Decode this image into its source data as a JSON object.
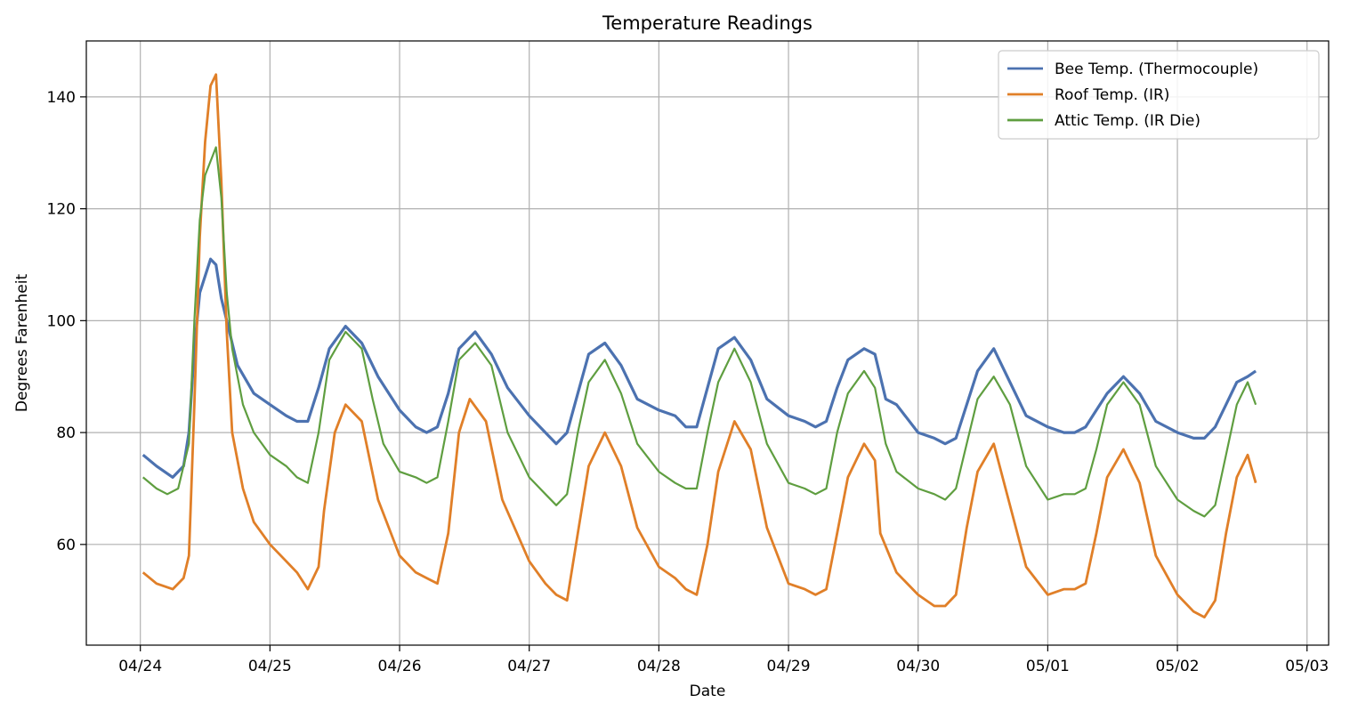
{
  "chart_data": {
    "type": "line",
    "title": "Temperature Readings",
    "xlabel": "Date",
    "ylabel": "Degrees Farenheit",
    "x_tick_labels": [
      "04/24",
      "04/25",
      "04/26",
      "04/27",
      "04/28",
      "04/29",
      "04/30",
      "05/01",
      "05/02",
      "05/03"
    ],
    "x_ticks": [
      "2019-04-24",
      "2019-04-25",
      "2019-04-26",
      "2019-04-27",
      "2019-04-28",
      "2019-04-29",
      "2019-04-30",
      "2019-05-01",
      "2019-05-02",
      "2019-05-03"
    ],
    "xlim": [
      "2019-04-23T14:00",
      "2019-05-03T04:00"
    ],
    "ylim": [
      42,
      150
    ],
    "y_ticks": [
      60,
      80,
      100,
      120,
      140
    ],
    "grid": true,
    "legend_position": "top-right",
    "series": [
      {
        "name": "Bee Temp. (Thermocouple)",
        "color": "#4c72b0",
        "points": [
          [
            "2019-04-24T00:30",
            76
          ],
          [
            "2019-04-24T03:00",
            74
          ],
          [
            "2019-04-24T06:00",
            72
          ],
          [
            "2019-04-24T08:00",
            74
          ],
          [
            "2019-04-24T09:00",
            80
          ],
          [
            "2019-04-24T10:00",
            95
          ],
          [
            "2019-04-24T11:00",
            105
          ],
          [
            "2019-04-24T13:00",
            111
          ],
          [
            "2019-04-24T14:00",
            110
          ],
          [
            "2019-04-24T15:00",
            104
          ],
          [
            "2019-04-24T16:00",
            100
          ],
          [
            "2019-04-24T18:00",
            92
          ],
          [
            "2019-04-24T21:00",
            87
          ],
          [
            "2019-04-25T00:00",
            85
          ],
          [
            "2019-04-25T03:00",
            83
          ],
          [
            "2019-04-25T05:00",
            82
          ],
          [
            "2019-04-25T07:00",
            82
          ],
          [
            "2019-04-25T09:00",
            88
          ],
          [
            "2019-04-25T11:00",
            95
          ],
          [
            "2019-04-25T14:00",
            99
          ],
          [
            "2019-04-25T17:00",
            96
          ],
          [
            "2019-04-25T20:00",
            90
          ],
          [
            "2019-04-26T00:00",
            84
          ],
          [
            "2019-04-26T03:00",
            81
          ],
          [
            "2019-04-26T05:00",
            80
          ],
          [
            "2019-04-26T07:00",
            81
          ],
          [
            "2019-04-26T09:00",
            87
          ],
          [
            "2019-04-26T11:00",
            95
          ],
          [
            "2019-04-26T14:00",
            98
          ],
          [
            "2019-04-26T17:00",
            94
          ],
          [
            "2019-04-26T20:00",
            88
          ],
          [
            "2019-04-27T00:00",
            83
          ],
          [
            "2019-04-27T03:00",
            80
          ],
          [
            "2019-04-27T05:00",
            78
          ],
          [
            "2019-04-27T07:00",
            80
          ],
          [
            "2019-04-27T09:00",
            87
          ],
          [
            "2019-04-27T11:00",
            94
          ],
          [
            "2019-04-27T14:00",
            96
          ],
          [
            "2019-04-27T17:00",
            92
          ],
          [
            "2019-04-27T20:00",
            86
          ],
          [
            "2019-04-28T00:00",
            84
          ],
          [
            "2019-04-28T03:00",
            83
          ],
          [
            "2019-04-28T05:00",
            81
          ],
          [
            "2019-04-28T07:00",
            81
          ],
          [
            "2019-04-28T09:00",
            88
          ],
          [
            "2019-04-28T11:00",
            95
          ],
          [
            "2019-04-28T14:00",
            97
          ],
          [
            "2019-04-28T17:00",
            93
          ],
          [
            "2019-04-28T20:00",
            86
          ],
          [
            "2019-04-29T00:00",
            83
          ],
          [
            "2019-04-29T03:00",
            82
          ],
          [
            "2019-04-29T05:00",
            81
          ],
          [
            "2019-04-29T07:00",
            82
          ],
          [
            "2019-04-29T09:00",
            88
          ],
          [
            "2019-04-29T11:00",
            93
          ],
          [
            "2019-04-29T14:00",
            95
          ],
          [
            "2019-04-29T16:00",
            94
          ],
          [
            "2019-04-29T18:00",
            86
          ],
          [
            "2019-04-29T20:00",
            85
          ],
          [
            "2019-04-30T00:00",
            80
          ],
          [
            "2019-04-30T03:00",
            79
          ],
          [
            "2019-04-30T05:00",
            78
          ],
          [
            "2019-04-30T07:00",
            79
          ],
          [
            "2019-04-30T09:00",
            85
          ],
          [
            "2019-04-30T11:00",
            91
          ],
          [
            "2019-04-30T14:00",
            95
          ],
          [
            "2019-04-30T17:00",
            89
          ],
          [
            "2019-04-30T20:00",
            83
          ],
          [
            "2019-05-01T00:00",
            81
          ],
          [
            "2019-05-01T03:00",
            80
          ],
          [
            "2019-05-01T05:00",
            80
          ],
          [
            "2019-05-01T07:00",
            81
          ],
          [
            "2019-05-01T09:00",
            84
          ],
          [
            "2019-05-01T11:00",
            87
          ],
          [
            "2019-05-01T14:00",
            90
          ],
          [
            "2019-05-01T17:00",
            87
          ],
          [
            "2019-05-01T20:00",
            82
          ],
          [
            "2019-05-02T00:00",
            80
          ],
          [
            "2019-05-02T03:00",
            79
          ],
          [
            "2019-05-02T05:00",
            79
          ],
          [
            "2019-05-02T07:00",
            81
          ],
          [
            "2019-05-02T09:00",
            85
          ],
          [
            "2019-05-02T11:00",
            89
          ],
          [
            "2019-05-02T13:00",
            90
          ],
          [
            "2019-05-02T14:30",
            91
          ]
        ]
      },
      {
        "name": "Roof Temp. (IR)",
        "color": "#e07f28",
        "points": [
          [
            "2019-04-24T00:30",
            55
          ],
          [
            "2019-04-24T03:00",
            53
          ],
          [
            "2019-04-24T06:00",
            52
          ],
          [
            "2019-04-24T08:00",
            54
          ],
          [
            "2019-04-24T09:00",
            58
          ],
          [
            "2019-04-24T10:00",
            85
          ],
          [
            "2019-04-24T11:00",
            115
          ],
          [
            "2019-04-24T12:00",
            132
          ],
          [
            "2019-04-24T13:00",
            142
          ],
          [
            "2019-04-24T14:00",
            144
          ],
          [
            "2019-04-24T15:00",
            125
          ],
          [
            "2019-04-24T16:00",
            98
          ],
          [
            "2019-04-24T17:00",
            80
          ],
          [
            "2019-04-24T19:00",
            70
          ],
          [
            "2019-04-24T21:00",
            64
          ],
          [
            "2019-04-25T00:00",
            60
          ],
          [
            "2019-04-25T03:00",
            57
          ],
          [
            "2019-04-25T05:00",
            55
          ],
          [
            "2019-04-25T07:00",
            52
          ],
          [
            "2019-04-25T09:00",
            56
          ],
          [
            "2019-04-25T10:00",
            66
          ],
          [
            "2019-04-25T12:00",
            80
          ],
          [
            "2019-04-25T14:00",
            85
          ],
          [
            "2019-04-25T17:00",
            82
          ],
          [
            "2019-04-25T20:00",
            68
          ],
          [
            "2019-04-26T00:00",
            58
          ],
          [
            "2019-04-26T03:00",
            55
          ],
          [
            "2019-04-26T05:00",
            54
          ],
          [
            "2019-04-26T07:00",
            53
          ],
          [
            "2019-04-26T09:00",
            62
          ],
          [
            "2019-04-26T11:00",
            80
          ],
          [
            "2019-04-26T13:00",
            86
          ],
          [
            "2019-04-26T16:00",
            82
          ],
          [
            "2019-04-26T19:00",
            68
          ],
          [
            "2019-04-27T00:00",
            57
          ],
          [
            "2019-04-27T03:00",
            53
          ],
          [
            "2019-04-27T05:00",
            51
          ],
          [
            "2019-04-27T07:00",
            50
          ],
          [
            "2019-04-27T09:00",
            62
          ],
          [
            "2019-04-27T11:00",
            74
          ],
          [
            "2019-04-27T14:00",
            80
          ],
          [
            "2019-04-27T17:00",
            74
          ],
          [
            "2019-04-27T20:00",
            63
          ],
          [
            "2019-04-28T00:00",
            56
          ],
          [
            "2019-04-28T03:00",
            54
          ],
          [
            "2019-04-28T05:00",
            52
          ],
          [
            "2019-04-28T07:00",
            51
          ],
          [
            "2019-04-28T09:00",
            60
          ],
          [
            "2019-04-28T11:00",
            73
          ],
          [
            "2019-04-28T14:00",
            82
          ],
          [
            "2019-04-28T17:00",
            77
          ],
          [
            "2019-04-28T20:00",
            63
          ],
          [
            "2019-04-29T00:00",
            53
          ],
          [
            "2019-04-29T03:00",
            52
          ],
          [
            "2019-04-29T05:00",
            51
          ],
          [
            "2019-04-29T07:00",
            52
          ],
          [
            "2019-04-29T09:00",
            62
          ],
          [
            "2019-04-29T11:00",
            72
          ],
          [
            "2019-04-29T14:00",
            78
          ],
          [
            "2019-04-29T16:00",
            75
          ],
          [
            "2019-04-29T17:00",
            62
          ],
          [
            "2019-04-29T20:00",
            55
          ],
          [
            "2019-04-30T00:00",
            51
          ],
          [
            "2019-04-30T03:00",
            49
          ],
          [
            "2019-04-30T05:00",
            49
          ],
          [
            "2019-04-30T07:00",
            51
          ],
          [
            "2019-04-30T09:00",
            63
          ],
          [
            "2019-04-30T11:00",
            73
          ],
          [
            "2019-04-30T14:00",
            78
          ],
          [
            "2019-04-30T17:00",
            67
          ],
          [
            "2019-04-30T20:00",
            56
          ],
          [
            "2019-05-01T00:00",
            51
          ],
          [
            "2019-05-01T03:00",
            52
          ],
          [
            "2019-05-01T05:00",
            52
          ],
          [
            "2019-05-01T07:00",
            53
          ],
          [
            "2019-05-01T09:00",
            62
          ],
          [
            "2019-05-01T11:00",
            72
          ],
          [
            "2019-05-01T14:00",
            77
          ],
          [
            "2019-05-01T17:00",
            71
          ],
          [
            "2019-05-01T20:00",
            58
          ],
          [
            "2019-05-02T00:00",
            51
          ],
          [
            "2019-05-02T03:00",
            48
          ],
          [
            "2019-05-02T05:00",
            47
          ],
          [
            "2019-05-02T07:00",
            50
          ],
          [
            "2019-05-02T09:00",
            62
          ],
          [
            "2019-05-02T11:00",
            72
          ],
          [
            "2019-05-02T13:00",
            76
          ],
          [
            "2019-05-02T14:30",
            71
          ]
        ]
      },
      {
        "name": "Attic Temp. (IR Die)",
        "color": "#5f9e40",
        "points": [
          [
            "2019-04-24T00:30",
            72
          ],
          [
            "2019-04-24T03:00",
            70
          ],
          [
            "2019-04-24T05:00",
            69
          ],
          [
            "2019-04-24T07:00",
            70
          ],
          [
            "2019-04-24T09:00",
            78
          ],
          [
            "2019-04-24T10:00",
            100
          ],
          [
            "2019-04-24T11:00",
            118
          ],
          [
            "2019-04-24T12:00",
            126
          ],
          [
            "2019-04-24T14:00",
            131
          ],
          [
            "2019-04-24T15:00",
            122
          ],
          [
            "2019-04-24T16:00",
            105
          ],
          [
            "2019-04-24T17:00",
            95
          ],
          [
            "2019-04-24T19:00",
            85
          ],
          [
            "2019-04-24T21:00",
            80
          ],
          [
            "2019-04-25T00:00",
            76
          ],
          [
            "2019-04-25T03:00",
            74
          ],
          [
            "2019-04-25T05:00",
            72
          ],
          [
            "2019-04-25T07:00",
            71
          ],
          [
            "2019-04-25T09:00",
            80
          ],
          [
            "2019-04-25T11:00",
            93
          ],
          [
            "2019-04-25T14:00",
            98
          ],
          [
            "2019-04-25T17:00",
            95
          ],
          [
            "2019-04-25T19:00",
            86
          ],
          [
            "2019-04-25T21:00",
            78
          ],
          [
            "2019-04-26T00:00",
            73
          ],
          [
            "2019-04-26T03:00",
            72
          ],
          [
            "2019-04-26T05:00",
            71
          ],
          [
            "2019-04-26T07:00",
            72
          ],
          [
            "2019-04-26T09:00",
            82
          ],
          [
            "2019-04-26T11:00",
            93
          ],
          [
            "2019-04-26T14:00",
            96
          ],
          [
            "2019-04-26T17:00",
            92
          ],
          [
            "2019-04-26T20:00",
            80
          ],
          [
            "2019-04-27T00:00",
            72
          ],
          [
            "2019-04-27T03:00",
            69
          ],
          [
            "2019-04-27T05:00",
            67
          ],
          [
            "2019-04-27T07:00",
            69
          ],
          [
            "2019-04-27T09:00",
            80
          ],
          [
            "2019-04-27T11:00",
            89
          ],
          [
            "2019-04-27T14:00",
            93
          ],
          [
            "2019-04-27T17:00",
            87
          ],
          [
            "2019-04-27T20:00",
            78
          ],
          [
            "2019-04-28T00:00",
            73
          ],
          [
            "2019-04-28T03:00",
            71
          ],
          [
            "2019-04-28T05:00",
            70
          ],
          [
            "2019-04-28T07:00",
            70
          ],
          [
            "2019-04-28T09:00",
            80
          ],
          [
            "2019-04-28T11:00",
            89
          ],
          [
            "2019-04-28T14:00",
            95
          ],
          [
            "2019-04-28T17:00",
            89
          ],
          [
            "2019-04-28T20:00",
            78
          ],
          [
            "2019-04-29T00:00",
            71
          ],
          [
            "2019-04-29T03:00",
            70
          ],
          [
            "2019-04-29T05:00",
            69
          ],
          [
            "2019-04-29T07:00",
            70
          ],
          [
            "2019-04-29T09:00",
            80
          ],
          [
            "2019-04-29T11:00",
            87
          ],
          [
            "2019-04-29T14:00",
            91
          ],
          [
            "2019-04-29T16:00",
            88
          ],
          [
            "2019-04-29T18:00",
            78
          ],
          [
            "2019-04-29T20:00",
            73
          ],
          [
            "2019-04-30T00:00",
            70
          ],
          [
            "2019-04-30T03:00",
            69
          ],
          [
            "2019-04-30T05:00",
            68
          ],
          [
            "2019-04-30T07:00",
            70
          ],
          [
            "2019-04-30T09:00",
            78
          ],
          [
            "2019-04-30T11:00",
            86
          ],
          [
            "2019-04-30T14:00",
            90
          ],
          [
            "2019-04-30T17:00",
            85
          ],
          [
            "2019-04-30T20:00",
            74
          ],
          [
            "2019-05-01T00:00",
            68
          ],
          [
            "2019-05-01T03:00",
            69
          ],
          [
            "2019-05-01T05:00",
            69
          ],
          [
            "2019-05-01T07:00",
            70
          ],
          [
            "2019-05-01T09:00",
            77
          ],
          [
            "2019-05-01T11:00",
            85
          ],
          [
            "2019-05-01T14:00",
            89
          ],
          [
            "2019-05-01T17:00",
            85
          ],
          [
            "2019-05-01T20:00",
            74
          ],
          [
            "2019-05-02T00:00",
            68
          ],
          [
            "2019-05-02T03:00",
            66
          ],
          [
            "2019-05-02T05:00",
            65
          ],
          [
            "2019-05-02T07:00",
            67
          ],
          [
            "2019-05-02T09:00",
            76
          ],
          [
            "2019-05-02T11:00",
            85
          ],
          [
            "2019-05-02T13:00",
            89
          ],
          [
            "2019-05-02T14:30",
            85
          ]
        ]
      }
    ]
  }
}
